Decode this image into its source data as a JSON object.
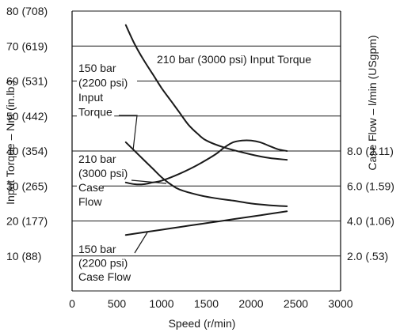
{
  "chart_data": {
    "type": "line",
    "xlabel": "Speed (r/min)",
    "ylabel": "Input Torque – Nm (in.lb.)",
    "y2label": "Case Flow – l/min (USgpm)",
    "xlim": [
      0,
      3000
    ],
    "ylim": [
      0,
      80
    ],
    "y2lim": [
      0,
      16
    ],
    "grid": "horizontal",
    "x_ticks": [
      "0",
      "500",
      "1000",
      "1500",
      "2000",
      "2500",
      "3000"
    ],
    "y_ticks": [
      {
        "value": 10,
        "label": "10 (88)"
      },
      {
        "value": 20,
        "label": "20 (177)"
      },
      {
        "value": 30,
        "label": "30 (265)"
      },
      {
        "value": 40,
        "label": "40 (354)"
      },
      {
        "value": 50,
        "label": "50 (442)"
      },
      {
        "value": 60,
        "label": "60 (531)"
      },
      {
        "value": 70,
        "label": "70 (619)"
      },
      {
        "value": 80,
        "label": "80 (708)"
      }
    ],
    "y2_ticks": [
      {
        "value": 2,
        "label": "2.0 (.53)"
      },
      {
        "value": 4,
        "label": "4.0 (1.06)"
      },
      {
        "value": 6,
        "label": "6.0 (1.59)"
      },
      {
        "value": 8,
        "label": "8.0 (2.11)"
      }
    ],
    "annotations": [
      {
        "id": "ann-210-torque",
        "lines": [
          "210 bar (3000 psi) Input Torque"
        ]
      },
      {
        "id": "ann-150-torque",
        "lines": [
          "150 bar",
          "(2200 psi)",
          "Input",
          "Torque"
        ]
      },
      {
        "id": "ann-210-flow",
        "lines": [
          "210 bar",
          "(3000 psi)",
          "Case",
          "Flow"
        ]
      },
      {
        "id": "ann-150-flow",
        "lines": [
          "150 bar",
          "(2200 psi)",
          "Case Flow"
        ]
      }
    ],
    "series": [
      {
        "axis": "left",
        "x": [
          600,
          700,
          800,
          900,
          1000,
          1100,
          1200,
          1300,
          1400,
          1500,
          1700,
          2000,
          2200,
          2400
        ],
        "y": [
          76,
          70.5,
          66,
          62,
          58,
          54.5,
          51,
          47.5,
          45,
          43,
          41,
          39,
          38,
          37.5
        ]
      },
      {
        "axis": "left",
        "x": [
          600,
          700,
          800,
          900,
          1000,
          1100,
          1200,
          1400,
          1600,
          1800,
          2000,
          2200,
          2400
        ],
        "y": [
          42.5,
          40,
          37.5,
          35,
          32.5,
          30.5,
          29,
          27.5,
          26.5,
          25.8,
          25,
          24.5,
          24.2
        ]
      },
      {
        "axis": "right",
        "x": [
          600,
          700,
          800,
          900,
          1000,
          1200,
          1400,
          1600,
          1700,
          1800,
          1900,
          2000,
          2100,
          2200,
          2300,
          2400
        ],
        "y": [
          6.2,
          6.1,
          6.1,
          6.2,
          6.3,
          6.7,
          7.2,
          7.8,
          8.2,
          8.5,
          8.6,
          8.6,
          8.5,
          8.3,
          8.1,
          8.0
        ]
      },
      {
        "axis": "right",
        "x": [
          600,
          800,
          1000,
          1200,
          1400,
          1600,
          1800,
          2000,
          2200,
          2400
        ],
        "y": [
          3.2,
          3.35,
          3.5,
          3.65,
          3.8,
          3.95,
          4.1,
          4.25,
          4.4,
          4.55
        ]
      }
    ]
  }
}
